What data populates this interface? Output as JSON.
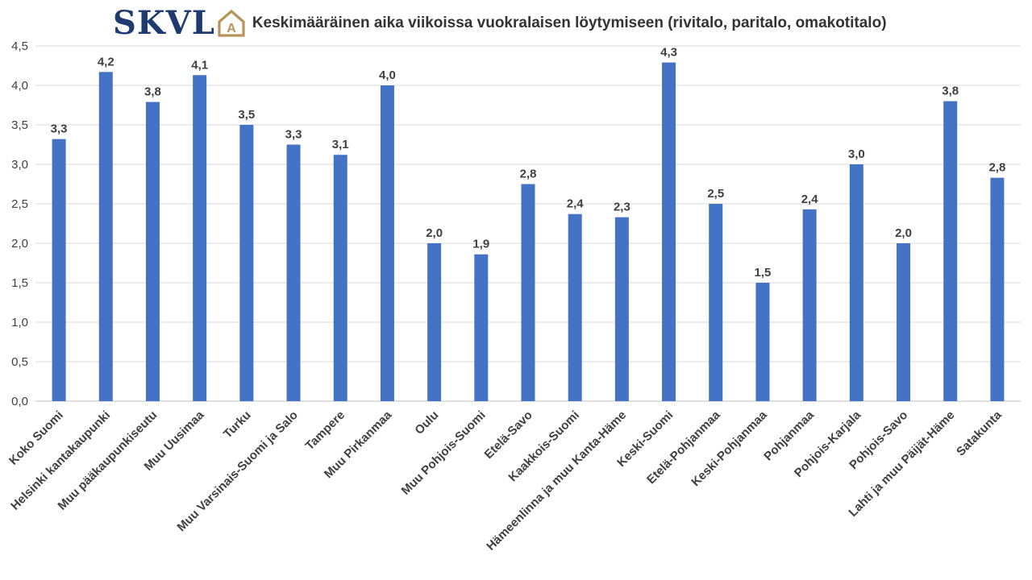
{
  "logo": {
    "text": "SKVL",
    "mark": "A",
    "text_color": "#1f3a6e",
    "accent_color": "#b8935a"
  },
  "colors": {
    "bar": "#4472c4",
    "grid": "#d9d9d9",
    "axis_line": "#bfbfbf"
  },
  "chart_data": {
    "type": "bar",
    "title": "Keskimääräinen aika viikoissa vuokralaisen löytymiseen (rivitalo, paritalo, omakotitalo)",
    "xlabel": "",
    "ylabel": "",
    "ylim": [
      0,
      4.5
    ],
    "yticks": [
      "0,0",
      "0,5",
      "1,0",
      "1,5",
      "2,0",
      "2,5",
      "3,0",
      "3,5",
      "4,0",
      "4,5"
    ],
    "grid": true,
    "categories": [
      "Koko Suomi",
      "Helsinki kantakaupunki",
      "Muu pääkaupunkiseutu",
      "Muu Uusimaa",
      "Turku",
      "Muu Varsinais-Suomi ja Salo",
      "Tampere",
      "Muu Pirkanmaa",
      "Oulu",
      "Muu Pohjois-Suomi",
      "Etelä-Savo",
      "Kaakkois-Suomi",
      "Hämeenlinna ja muu Kanta-Häme",
      "Keski-Suomi",
      "Etelä-Pohjanmaa",
      "Keski-Pohjanmaa",
      "Pohjanmaa",
      "Pohjois-Karjala",
      "Pohjois-Savo",
      "Lahti ja muu Päijät-Häme",
      "Satakunta"
    ],
    "values": [
      3.32,
      4.17,
      3.79,
      4.13,
      3.5,
      3.25,
      3.12,
      4.0,
      2.0,
      1.86,
      2.75,
      2.37,
      2.33,
      4.29,
      2.5,
      1.5,
      2.43,
      3.0,
      2.0,
      3.8,
      2.83
    ],
    "data_labels": [
      "3,3",
      "4,2",
      "3,8",
      "4,1",
      "3,5",
      "3,3",
      "3,1",
      "4,0",
      "2,0",
      "1,9",
      "2,8",
      "2,4",
      "2,3",
      "4,3",
      "2,5",
      "1,5",
      "2,4",
      "3,0",
      "2,0",
      "3,8",
      "2,8"
    ]
  }
}
